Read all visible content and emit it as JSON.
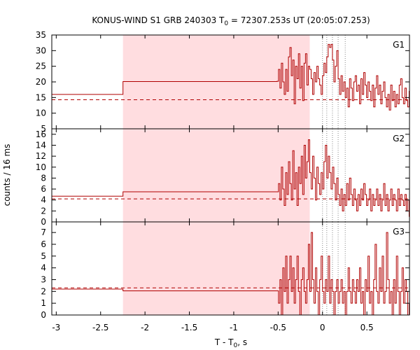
{
  "chart_data": {
    "type": "line",
    "title": {
      "prefix": "KONUS-WIND S1 GRB 240303 T",
      "sub": "0",
      "suffix": " = 72307.253s UT (20:05:07.253)"
    },
    "xlabel": {
      "prefix": "T - T",
      "sub": "0",
      "suffix": ", s"
    },
    "ylabel": "counts / 16 ms",
    "xlim": [
      -3.05,
      0.98
    ],
    "x_ticks": [
      -3,
      -2.5,
      -2,
      -1.5,
      -1,
      -0.5,
      0,
      0.5
    ],
    "x_tick_labels": [
      "-3",
      "-2.5",
      "-2",
      "-1.5",
      "-1",
      "-0.5",
      "0",
      "0.5"
    ],
    "shaded_interval": [
      -2.248,
      -0.144
    ],
    "colors": {
      "line": "#b00000",
      "shade": "#ffdde0",
      "vlines": "#888888",
      "axis": "#000000"
    },
    "vertical_dotted_lines": [
      0.0,
      0.048,
      0.112,
      0.176,
      0.256
    ],
    "panels": [
      {
        "name": "G1",
        "ylim": [
          5,
          35
        ],
        "y_ticks": [
          5,
          10,
          15,
          20,
          25,
          30,
          35
        ],
        "y_tick_labels": [
          "5",
          "10",
          "15",
          "20",
          "25",
          "30",
          "35"
        ],
        "background_level": 14.3,
        "steps": [
          [
            -3.05,
            16.0
          ],
          [
            -2.248,
            20.1
          ],
          [
            -0.512,
            20.2
          ],
          [
            -0.496,
            24
          ],
          [
            -0.48,
            18
          ],
          [
            -0.464,
            26
          ],
          [
            -0.448,
            20
          ],
          [
            -0.432,
            16
          ],
          [
            -0.416,
            24
          ],
          [
            -0.4,
            17
          ],
          [
            -0.384,
            28
          ],
          [
            -0.368,
            31
          ],
          [
            -0.352,
            22
          ],
          [
            -0.336,
            27
          ],
          [
            -0.32,
            13
          ],
          [
            -0.304,
            25
          ],
          [
            -0.288,
            21
          ],
          [
            -0.272,
            29
          ],
          [
            -0.256,
            18
          ],
          [
            -0.24,
            25
          ],
          [
            -0.224,
            14
          ],
          [
            -0.208,
            26
          ],
          [
            -0.192,
            29
          ],
          [
            -0.176,
            19
          ],
          [
            -0.16,
            25
          ],
          [
            -0.144,
            24
          ],
          [
            -0.128,
            21
          ],
          [
            -0.112,
            16
          ],
          [
            -0.096,
            23
          ],
          [
            -0.08,
            20
          ],
          [
            -0.064,
            25
          ],
          [
            -0.048,
            21
          ],
          [
            -0.032,
            19
          ],
          [
            -0.016,
            16
          ],
          [
            0.0,
            22
          ],
          [
            0.016,
            26
          ],
          [
            0.032,
            23
          ],
          [
            0.048,
            28
          ],
          [
            0.064,
            32
          ],
          [
            0.08,
            31
          ],
          [
            0.096,
            32
          ],
          [
            0.112,
            27
          ],
          [
            0.128,
            20
          ],
          [
            0.144,
            25
          ],
          [
            0.16,
            30
          ],
          [
            0.176,
            21
          ],
          [
            0.192,
            16
          ],
          [
            0.208,
            22
          ],
          [
            0.224,
            17
          ],
          [
            0.24,
            20
          ],
          [
            0.256,
            15
          ],
          [
            0.272,
            18
          ],
          [
            0.288,
            12
          ],
          [
            0.304,
            21
          ],
          [
            0.32,
            18
          ],
          [
            0.336,
            14
          ],
          [
            0.352,
            20
          ],
          [
            0.368,
            22
          ],
          [
            0.384,
            17
          ],
          [
            0.4,
            19
          ],
          [
            0.416,
            13
          ],
          [
            0.432,
            21
          ],
          [
            0.448,
            16
          ],
          [
            0.464,
            23
          ],
          [
            0.48,
            19
          ],
          [
            0.496,
            15
          ],
          [
            0.512,
            20
          ],
          [
            0.528,
            17
          ],
          [
            0.544,
            14
          ],
          [
            0.56,
            19
          ],
          [
            0.576,
            12
          ],
          [
            0.592,
            18
          ],
          [
            0.608,
            22
          ],
          [
            0.624,
            16
          ],
          [
            0.64,
            19
          ],
          [
            0.656,
            13
          ],
          [
            0.672,
            17
          ],
          [
            0.688,
            20
          ],
          [
            0.704,
            15
          ],
          [
            0.72,
            12
          ],
          [
            0.736,
            16
          ],
          [
            0.752,
            11
          ],
          [
            0.768,
            19
          ],
          [
            0.784,
            14
          ],
          [
            0.8,
            17
          ],
          [
            0.816,
            12
          ],
          [
            0.832,
            16
          ],
          [
            0.848,
            13
          ],
          [
            0.864,
            19
          ],
          [
            0.88,
            21
          ],
          [
            0.896,
            15
          ],
          [
            0.912,
            13
          ],
          [
            0.928,
            18
          ],
          [
            0.944,
            14
          ],
          [
            0.96,
            12
          ],
          [
            0.976,
            17
          ]
        ]
      },
      {
        "name": "G2",
        "ylim": [
          0,
          17
        ],
        "y_ticks": [
          0,
          2,
          4,
          6,
          8,
          10,
          12,
          14,
          16
        ],
        "y_tick_labels": [
          "0",
          "2",
          "4",
          "6",
          "8",
          "10",
          "12",
          "14",
          "16"
        ],
        "background_level": 4.2,
        "steps": [
          [
            -3.05,
            4.7
          ],
          [
            -2.248,
            5.5
          ],
          [
            -0.512,
            5.5
          ],
          [
            -0.496,
            7
          ],
          [
            -0.48,
            4
          ],
          [
            -0.464,
            10
          ],
          [
            -0.448,
            6
          ],
          [
            -0.432,
            3
          ],
          [
            -0.416,
            9
          ],
          [
            -0.4,
            5
          ],
          [
            -0.384,
            11
          ],
          [
            -0.368,
            7
          ],
          [
            -0.352,
            4
          ],
          [
            -0.336,
            13
          ],
          [
            -0.32,
            6
          ],
          [
            -0.304,
            9
          ],
          [
            -0.288,
            3
          ],
          [
            -0.272,
            10
          ],
          [
            -0.256,
            7
          ],
          [
            -0.24,
            12
          ],
          [
            -0.224,
            5
          ],
          [
            -0.208,
            14
          ],
          [
            -0.192,
            8
          ],
          [
            -0.176,
            11
          ],
          [
            -0.16,
            15
          ],
          [
            -0.144,
            9
          ],
          [
            -0.128,
            6
          ],
          [
            -0.112,
            12
          ],
          [
            -0.096,
            8
          ],
          [
            -0.08,
            4
          ],
          [
            -0.064,
            10
          ],
          [
            -0.048,
            7
          ],
          [
            -0.032,
            5
          ],
          [
            -0.016,
            9
          ],
          [
            0.0,
            6
          ],
          [
            0.016,
            11
          ],
          [
            0.032,
            14
          ],
          [
            0.048,
            8
          ],
          [
            0.064,
            12
          ],
          [
            0.08,
            9
          ],
          [
            0.096,
            6
          ],
          [
            0.112,
            10
          ],
          [
            0.128,
            7
          ],
          [
            0.144,
            4
          ],
          [
            0.16,
            8
          ],
          [
            0.176,
            5
          ],
          [
            0.192,
            3
          ],
          [
            0.208,
            6
          ],
          [
            0.224,
            2
          ],
          [
            0.24,
            5
          ],
          [
            0.256,
            3
          ],
          [
            0.272,
            7
          ],
          [
            0.288,
            4
          ],
          [
            0.304,
            8
          ],
          [
            0.32,
            5
          ],
          [
            0.336,
            3
          ],
          [
            0.352,
            6
          ],
          [
            0.368,
            4
          ],
          [
            0.384,
            2
          ],
          [
            0.4,
            5
          ],
          [
            0.416,
            3
          ],
          [
            0.432,
            6
          ],
          [
            0.448,
            4
          ],
          [
            0.464,
            7
          ],
          [
            0.48,
            5
          ],
          [
            0.496,
            3
          ],
          [
            0.512,
            4
          ],
          [
            0.528,
            6
          ],
          [
            0.544,
            2
          ],
          [
            0.56,
            5
          ],
          [
            0.576,
            3
          ],
          [
            0.592,
            4
          ],
          [
            0.608,
            6
          ],
          [
            0.624,
            3
          ],
          [
            0.64,
            5
          ],
          [
            0.656,
            2
          ],
          [
            0.672,
            4
          ],
          [
            0.688,
            7
          ],
          [
            0.704,
            3
          ],
          [
            0.72,
            5
          ],
          [
            0.736,
            2
          ],
          [
            0.752,
            4
          ],
          [
            0.768,
            6
          ],
          [
            0.784,
            3
          ],
          [
            0.8,
            5
          ],
          [
            0.816,
            4
          ],
          [
            0.832,
            2
          ],
          [
            0.848,
            6
          ],
          [
            0.864,
            3
          ],
          [
            0.88,
            5
          ],
          [
            0.896,
            4
          ],
          [
            0.912,
            3
          ],
          [
            0.928,
            5
          ],
          [
            0.944,
            2
          ],
          [
            0.96,
            4
          ],
          [
            0.976,
            1
          ]
        ]
      },
      {
        "name": "G3",
        "ylim": [
          0,
          7.9
        ],
        "y_ticks": [
          0,
          1,
          2,
          3,
          4,
          5,
          6,
          7
        ],
        "y_tick_labels": [
          "0",
          "1",
          "2",
          "3",
          "4",
          "5",
          "6",
          "7"
        ],
        "background_level": 2.3,
        "steps": [
          [
            -3.05,
            2.2
          ],
          [
            -2.248,
            2.05
          ],
          [
            -0.512,
            2.05
          ],
          [
            -0.496,
            1
          ],
          [
            -0.48,
            3
          ],
          [
            -0.464,
            0
          ],
          [
            -0.448,
            4
          ],
          [
            -0.432,
            2
          ],
          [
            -0.416,
            5
          ],
          [
            -0.4,
            1
          ],
          [
            -0.384,
            3
          ],
          [
            -0.368,
            5
          ],
          [
            -0.352,
            2
          ],
          [
            -0.336,
            4
          ],
          [
            -0.32,
            1
          ],
          [
            -0.304,
            3
          ],
          [
            -0.288,
            5
          ],
          [
            -0.272,
            2
          ],
          [
            -0.256,
            0
          ],
          [
            -0.24,
            3
          ],
          [
            -0.224,
            4
          ],
          [
            -0.208,
            2
          ],
          [
            -0.192,
            1
          ],
          [
            -0.176,
            3
          ],
          [
            -0.16,
            6
          ],
          [
            -0.144,
            2
          ],
          [
            -0.128,
            7
          ],
          [
            -0.112,
            3
          ],
          [
            -0.096,
            1
          ],
          [
            -0.08,
            4
          ],
          [
            -0.064,
            2
          ],
          [
            -0.048,
            0
          ],
          [
            -0.032,
            3
          ],
          [
            -0.016,
            5
          ],
          [
            0.0,
            2
          ],
          [
            0.016,
            1
          ],
          [
            0.032,
            3
          ],
          [
            0.048,
            2
          ],
          [
            0.064,
            5
          ],
          [
            0.08,
            1
          ],
          [
            0.096,
            3
          ],
          [
            0.112,
            2
          ],
          [
            0.128,
            0
          ],
          [
            0.144,
            2
          ],
          [
            0.16,
            3
          ],
          [
            0.176,
            1
          ],
          [
            0.192,
            2
          ],
          [
            0.208,
            3
          ],
          [
            0.224,
            1
          ],
          [
            0.24,
            2
          ],
          [
            0.256,
            0
          ],
          [
            0.272,
            2
          ],
          [
            0.288,
            4
          ],
          [
            0.304,
            2
          ],
          [
            0.32,
            1
          ],
          [
            0.336,
            3
          ],
          [
            0.352,
            2
          ],
          [
            0.368,
            1
          ],
          [
            0.384,
            3
          ],
          [
            0.4,
            2
          ],
          [
            0.416,
            4
          ],
          [
            0.432,
            1
          ],
          [
            0.448,
            2
          ],
          [
            0.464,
            0
          ],
          [
            0.48,
            3
          ],
          [
            0.496,
            2
          ],
          [
            0.512,
            5
          ],
          [
            0.528,
            1
          ],
          [
            0.544,
            2
          ],
          [
            0.56,
            0
          ],
          [
            0.576,
            3
          ],
          [
            0.592,
            6
          ],
          [
            0.608,
            2
          ],
          [
            0.624,
            1
          ],
          [
            0.64,
            4
          ],
          [
            0.656,
            2
          ],
          [
            0.672,
            5
          ],
          [
            0.688,
            1
          ],
          [
            0.704,
            2
          ],
          [
            0.72,
            7
          ],
          [
            0.736,
            3
          ],
          [
            0.752,
            1
          ],
          [
            0.768,
            2
          ],
          [
            0.784,
            0
          ],
          [
            0.8,
            3
          ],
          [
            0.816,
            1
          ],
          [
            0.832,
            5
          ],
          [
            0.848,
            2
          ],
          [
            0.864,
            0
          ],
          [
            0.88,
            2
          ],
          [
            0.896,
            4
          ],
          [
            0.912,
            1
          ],
          [
            0.928,
            3
          ],
          [
            0.944,
            2
          ],
          [
            0.96,
            0
          ],
          [
            0.976,
            1
          ]
        ]
      }
    ]
  }
}
